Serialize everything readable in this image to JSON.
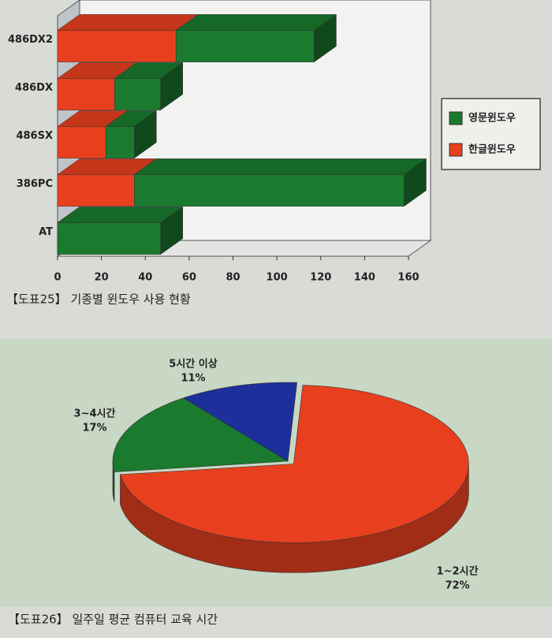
{
  "chart_data": [
    {
      "type": "bar",
      "orientation": "horizontal",
      "stacked": true,
      "title": "【도표25】 기종별 윈도우 사용 현황",
      "categories": [
        "486DX2",
        "486DX",
        "486SX",
        "386PC",
        "AT"
      ],
      "series": [
        {
          "name": "한글윈도우",
          "color": "#e8401f",
          "values": [
            54,
            26,
            22,
            35,
            0
          ]
        },
        {
          "name": "영문윈도우",
          "color": "#1a7a2e",
          "values": [
            63,
            21,
            13,
            123,
            47
          ]
        }
      ],
      "xlim": [
        0,
        160
      ],
      "xticks": [
        0,
        20,
        40,
        60,
        80,
        100,
        120,
        140,
        160
      ],
      "legend": "right"
    },
    {
      "type": "pie",
      "title": "【도표26】 일주일 평균 컴퓨터 교육 시간",
      "categories": [
        "1~2시간",
        "3~4시간",
        "5시간 이상"
      ],
      "values": [
        72,
        17,
        11
      ],
      "value_labels": [
        "72%",
        "17%",
        "11%"
      ],
      "colors": [
        "#e8401f",
        "#1a7a2e",
        "#1c2f9a"
      ]
    }
  ]
}
